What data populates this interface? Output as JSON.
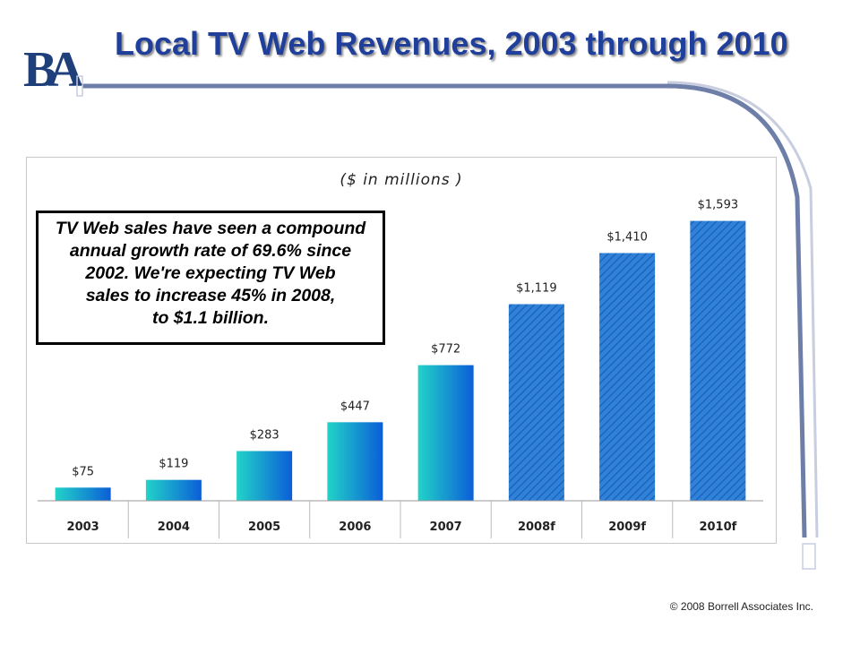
{
  "header": {
    "logo_text": "BA",
    "title": "Local TV Web Revenues, 2003 through 2010"
  },
  "callout": {
    "lines": [
      "TV Web sales have seen a compound",
      "annual growth rate of 69.6%  since",
      "2002. We're expecting TV Web",
      "sales to increase 45% in 2008,",
      "to $1.1 billion."
    ]
  },
  "footer": {
    "copyright": "© 2008 Borrell  Associates Inc."
  },
  "colors": {
    "title": "#1f3f9a",
    "bar_gradient_start": "#22d3c8",
    "bar_gradient_end": "#0b5ed7",
    "forecast_fill": "#2f82d8",
    "forecast_hatch": "#1a5fb8"
  },
  "chart_data": {
    "type": "bar",
    "subtitle": "($ in millions )",
    "categories": [
      "2003",
      "2004",
      "2005",
      "2006",
      "2007",
      "2008f",
      "2009f",
      "2010f"
    ],
    "values": [
      75,
      119,
      283,
      447,
      772,
      1119,
      1410,
      1593
    ],
    "value_labels": [
      "$75",
      "$119",
      "$283",
      "$447",
      "$772",
      "$1,119",
      "$1,410",
      "$1,593"
    ],
    "forecast": [
      false,
      false,
      false,
      false,
      false,
      true,
      true,
      true
    ],
    "ylim": [
      0,
      1800
    ],
    "grid": false,
    "legend": "none"
  }
}
